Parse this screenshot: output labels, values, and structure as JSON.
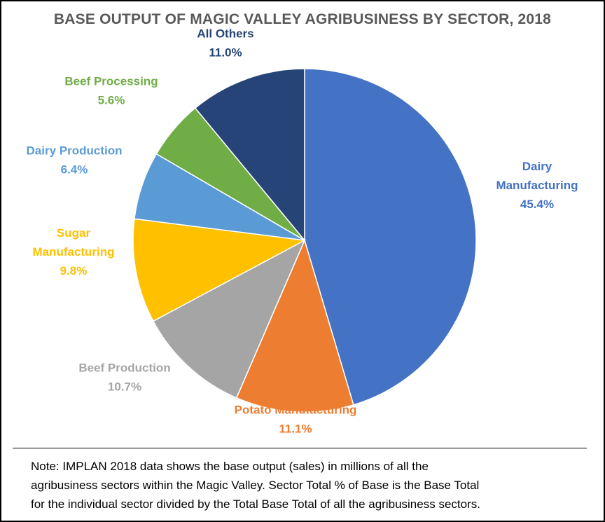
{
  "chart_data": {
    "type": "pie",
    "title": "BASE OUTPUT OF MAGIC VALLEY AGRIBUSINESS BY SECTOR, 2018",
    "slices": [
      {
        "label_lines": [
          "Dairy",
          "Manufacturing"
        ],
        "value": 45.4,
        "pct_label": "45.4%",
        "color": "#4472C4"
      },
      {
        "label_lines": [
          "Potato Manufacturing"
        ],
        "value": 11.1,
        "pct_label": "11.1%",
        "color": "#ED7D31"
      },
      {
        "label_lines": [
          "Beef Production"
        ],
        "value": 10.7,
        "pct_label": "10.7%",
        "color": "#A5A5A5"
      },
      {
        "label_lines": [
          "Sugar",
          "Manufacturing"
        ],
        "value": 9.8,
        "pct_label": "9.8%",
        "color": "#FFC000"
      },
      {
        "label_lines": [
          "Dairy Production"
        ],
        "value": 6.4,
        "pct_label": "6.4%",
        "color": "#5B9BD5"
      },
      {
        "label_lines": [
          "Beef Processing"
        ],
        "value": 5.6,
        "pct_label": "5.6%",
        "color": "#70AD47"
      },
      {
        "label_lines": [
          "All Others"
        ],
        "value": 11.0,
        "pct_label": "11.0%",
        "color": "#264478"
      }
    ],
    "start_angle_deg": 0,
    "direction": "clockwise"
  },
  "note": {
    "lines": [
      "Note: IMPLAN 2018 data shows the base output (sales) in millions of all the",
      "agribusiness sectors within the Magic Valley. Sector Total % of Base is the Base Total",
      "for the individual sector divided by the Total Base Total of all the agribusiness sectors."
    ]
  }
}
